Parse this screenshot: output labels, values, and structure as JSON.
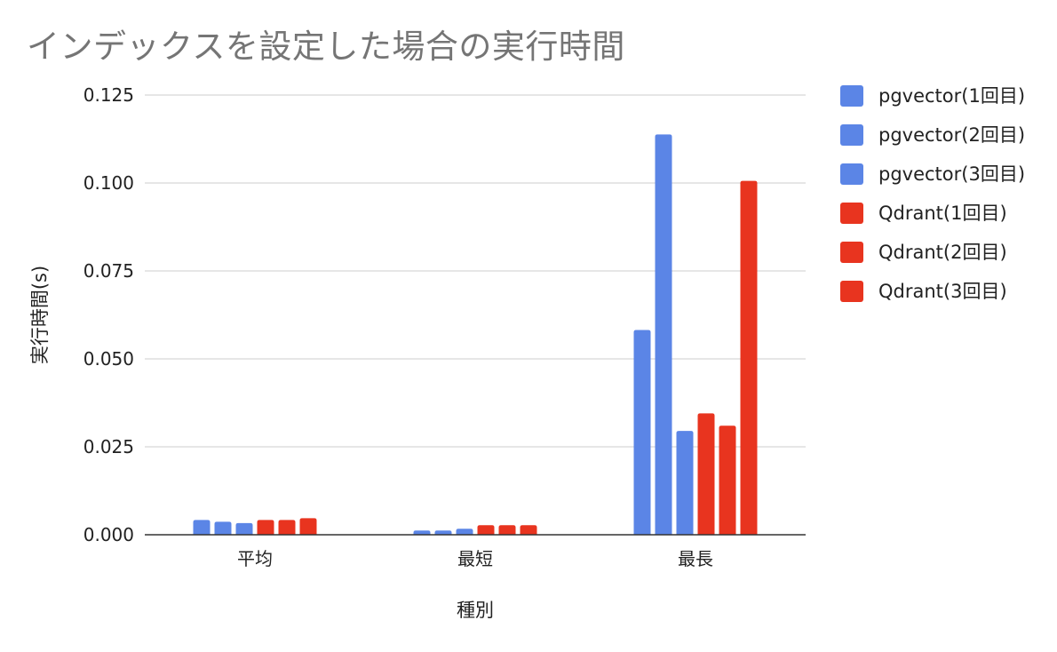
{
  "chart_data": {
    "type": "bar",
    "title": "インデックスを設定した場合の実行時間",
    "xlabel": "種別",
    "ylabel": "実行時間(s)",
    "categories": [
      "平均",
      "最短",
      "最長"
    ],
    "ylim": [
      0,
      0.125
    ],
    "yticks": [
      "0.000",
      "0.025",
      "0.050",
      "0.075",
      "0.100",
      "0.125"
    ],
    "ytick_values": [
      0,
      0.025,
      0.05,
      0.075,
      0.1,
      0.125
    ],
    "grid": true,
    "legend_position": "right",
    "series": [
      {
        "name": "pgvector(1回目)",
        "color": "#5b85e6",
        "values": [
          0.0042,
          0.0012,
          0.0582
        ]
      },
      {
        "name": "pgvector(2回目)",
        "color": "#5b85e6",
        "values": [
          0.0037,
          0.0012,
          0.1138
        ]
      },
      {
        "name": "pgvector(3回目)",
        "color": "#5b85e6",
        "values": [
          0.0033,
          0.0017,
          0.0295
        ]
      },
      {
        "name": "Qdrant(1回目)",
        "color": "#e8341f",
        "values": [
          0.0042,
          0.0027,
          0.0345
        ]
      },
      {
        "name": "Qdrant(2回目)",
        "color": "#e8341f",
        "values": [
          0.0042,
          0.0027,
          0.031
        ]
      },
      {
        "name": "Qdrant(3回目)",
        "color": "#e8341f",
        "values": [
          0.0047,
          0.0027,
          0.1006
        ]
      }
    ]
  }
}
